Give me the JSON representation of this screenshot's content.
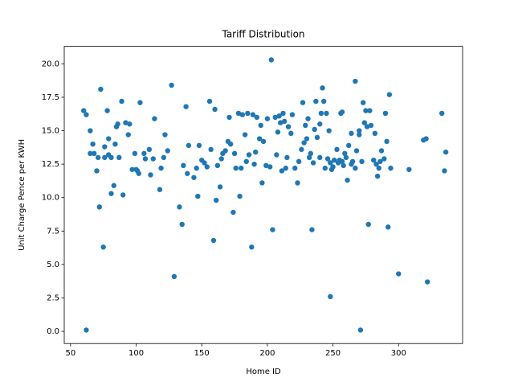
{
  "chart_data": {
    "type": "scatter",
    "title": "Tariff Distribution",
    "x_label": "Home ID",
    "y_label": "Unit Charge Pence per KWH",
    "color": "#1f77b4",
    "x": [
      60,
      62,
      62,
      65,
      65,
      67,
      68,
      70,
      71,
      72,
      73,
      75,
      76,
      76,
      78,
      79,
      79,
      81,
      81,
      83,
      84,
      85,
      86,
      87,
      89,
      90,
      92,
      94,
      95,
      97,
      99,
      100,
      101,
      102,
      103,
      106,
      107,
      110,
      111,
      113,
      114,
      118,
      119,
      121,
      122,
      124,
      127,
      129,
      133,
      135,
      136,
      138,
      139,
      140,
      144,
      146,
      147,
      148,
      150,
      152,
      154,
      156,
      157,
      159,
      160,
      161,
      162,
      164,
      165,
      166,
      168,
      170,
      171,
      172,
      174,
      175,
      176,
      178,
      179,
      180,
      181,
      183,
      184,
      185,
      186,
      188,
      189,
      190,
      191,
      192,
      194,
      195,
      196,
      197,
      199,
      200,
      202,
      203,
      204,
      206,
      207,
      208,
      209,
      210,
      211,
      212,
      213,
      214,
      215,
      216,
      218,
      219,
      221,
      223,
      224,
      226,
      227,
      228,
      229,
      230,
      231,
      232,
      233,
      234,
      235,
      236,
      237,
      238,
      240,
      240,
      241,
      242,
      243,
      244,
      245,
      246,
      247,
      248,
      248,
      249,
      250,
      251,
      253,
      254,
      255,
      256,
      257,
      257,
      258,
      259,
      260,
      261,
      262,
      264,
      264,
      265,
      267,
      267,
      268,
      270,
      270,
      271,
      272,
      273,
      274,
      275,
      276,
      277,
      278,
      279,
      281,
      282,
      283,
      284,
      285,
      286,
      287,
      289,
      290,
      291,
      292,
      293,
      294,
      300,
      308,
      319,
      321,
      322,
      333,
      335,
      336
    ],
    "values": [
      16.5,
      16.2,
      0.1,
      15.0,
      13.3,
      14.0,
      13.3,
      12.0,
      13.0,
      9.3,
      18.1,
      6.3,
      13.0,
      13.8,
      16.5,
      14.4,
      13.2,
      13.0,
      10.3,
      10.9,
      14.0,
      15.3,
      15.5,
      13.0,
      17.2,
      10.2,
      15.6,
      14.7,
      15.5,
      12.1,
      13.3,
      12.1,
      12.0,
      11.8,
      17.1,
      13.3,
      12.9,
      13.6,
      11.7,
      12.9,
      15.9,
      10.6,
      12.2,
      13.0,
      14.7,
      13.5,
      18.4,
      4.1,
      9.3,
      8.0,
      12.4,
      16.8,
      11.8,
      13.9,
      11.5,
      12.2,
      10.1,
      13.9,
      12.8,
      12.6,
      12.3,
      17.2,
      13.6,
      6.8,
      16.6,
      9.8,
      12.4,
      10.8,
      12.9,
      13.3,
      13.5,
      14.2,
      16.0,
      14.0,
      8.9,
      13.3,
      12.2,
      16.3,
      10.1,
      12.2,
      16.2,
      14.7,
      12.7,
      16.3,
      13.2,
      6.3,
      16.2,
      12.5,
      13.4,
      16.0,
      14.4,
      15.4,
      11.1,
      14.2,
      12.4,
      15.9,
      12.3,
      20.3,
      7.6,
      16.0,
      13.2,
      14.9,
      16.1,
      15.6,
      12.0,
      16.3,
      15.7,
      12.2,
      13.0,
      15.3,
      14.8,
      16.2,
      12.2,
      11.1,
      12.7,
      13.6,
      17.1,
      14.1,
      15.4,
      14.4,
      15.9,
      13.0,
      13.3,
      7.6,
      12.6,
      15.1,
      17.2,
      14.5,
      13.0,
      15.5,
      16.3,
      18.2,
      17.2,
      12.2,
      16.3,
      12.9,
      15.0,
      12.6,
      2.6,
      12.1,
      12.3,
      12.8,
      13.6,
      12.6,
      12.8,
      16.3,
      16.4,
      12.7,
      12.4,
      13.3,
      13.0,
      11.3,
      13.9,
      14.8,
      12.5,
      12.7,
      12.2,
      18.7,
      13.5,
      15.0,
      14.7,
      0.1,
      12.7,
      17.1,
      15.6,
      16.5,
      15.3,
      8.0,
      16.5,
      15.4,
      12.8,
      14.8,
      12.5,
      11.6,
      12.2,
      12.7,
      13.5,
      12.9,
      16.3,
      14.2,
      7.8,
      17.7,
      12.2,
      4.3,
      12.1,
      14.3,
      14.4,
      3.7,
      16.3,
      12.0,
      13.4
    ],
    "xlim": [
      45.2,
      348.8
    ],
    "ylim": [
      -0.91,
      21.31
    ],
    "xticks": [
      50,
      100,
      150,
      200,
      250,
      300
    ],
    "yticks": [
      {
        "value": 0,
        "label": "0.0"
      },
      2.5,
      {
        "value": 5,
        "label": "5.0"
      },
      7.5,
      {
        "value": 10,
        "label": "10.0"
      },
      12.5,
      {
        "value": 15,
        "label": "15.0"
      },
      17.5,
      {
        "value": 20,
        "label": "20.0"
      }
    ]
  }
}
